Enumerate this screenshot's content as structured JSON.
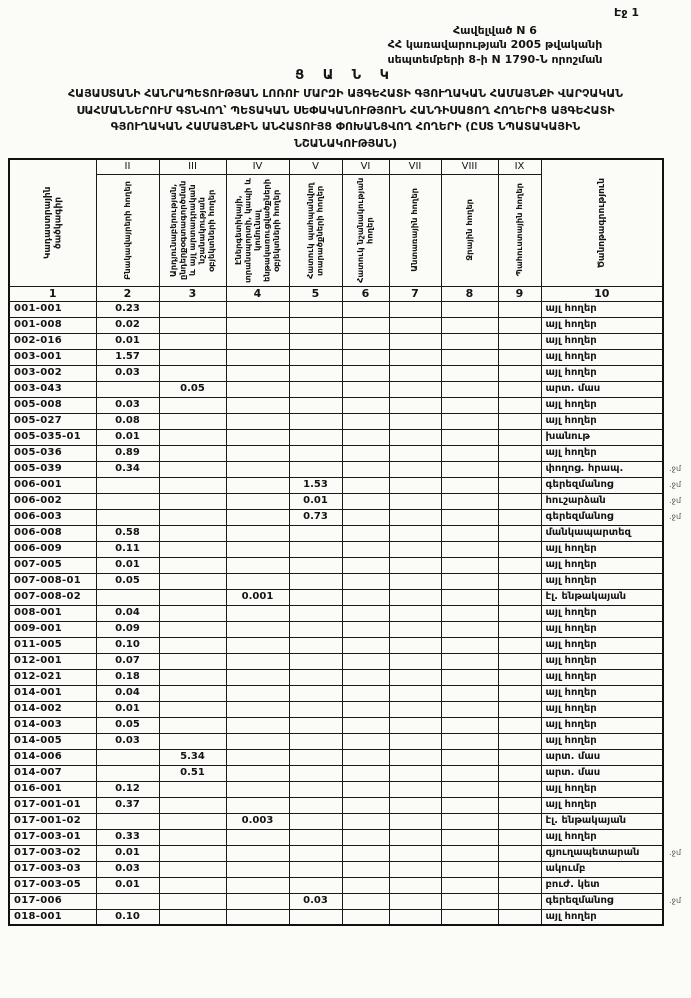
{
  "document": {
    "page_label": "Էջ 1",
    "appendix": {
      "line1": "Հավելված N 6",
      "line2": "ՀՀ կառավարության 2005 թվականի",
      "line3": "սեպտեմբերի 8-ի  N 1790-Ն որոշման"
    },
    "title": {
      "heading": "Ց Ա Ն Կ",
      "line1": "ՀԱՅԱՍՏԱՆԻ ՀԱՆՐԱՊԵՏՈՒԹՅԱՆ ԼՈՌՈՒ ՄԱՐԶԻ ԱՅԳԵՀԱՏԻ ԳՅՈՒՂԱԿԱՆ ՀԱՄԱՅՆՔԻ ՎԱՐՉԱԿԱՆ",
      "line2": "ՍԱՀՄԱՆՆԵՐՈՒՄ ԳՏՆՎՈՂ՝ ՊԵՏԱԿԱՆ ՍԵՓԱԿԱՆՈՒԹՅՈՒՆ ՀԱՆԴԻՍԱՑՈՂ ՀՈՂԵՐԻՑ ԱՅԳԵՀԱՏԻ",
      "line3": "ԳՅՈՒՂԱԿԱՆ ՀԱՄԱՅՆՔԻՆ ԱՆՀԱՏՈՒՅՑ ՓՈԽԱՆՑՎՈՂ ՀՈՂԵՐԻ  (ԸՍՏ ՆՊԱՏԱԿԱՅԻՆ",
      "line4": "ՆՇԱՆԱԿՈՒԹՅԱՆ)"
    }
  },
  "table": {
    "romans": [
      "II",
      "III",
      "IV",
      "V",
      "VI",
      "VII",
      "VIII",
      "IX"
    ],
    "headers": {
      "col1": "Կադաստրային ծածկագիր",
      "col2": "Բնակավայրերի հողեր",
      "col3": "Արդյունաբերության, ընդերքօգտագործման և այլ արտադրական նշանակության օբյեկտների հողեր",
      "col4": "Էներգետիկայի, տրանսպորտի, կապի և կոմունալ ենթակառուցվածքների օբյեկտների հողեր",
      "col5": "Հատուկ պահպանվող տարածքների հողեր",
      "col6": "Հատուկ նշանակության հողեր",
      "col7": "Անտառային հողեր",
      "col8": "Ջրային հողեր",
      "col9": "Պահուստային հողեր",
      "col10": "Ծանոթագրություն"
    },
    "column_numbers": [
      "1",
      "2",
      "3",
      "4",
      "5",
      "6",
      "7",
      "8",
      "9",
      "10"
    ],
    "row_format": [
      "code",
      "col2",
      "col3",
      "col4",
      "col5",
      "col6",
      "col7",
      "col8",
      "col9",
      "note",
      "margin_mark"
    ],
    "rows": [
      [
        "001-001",
        "0.23",
        "",
        "",
        "",
        "",
        "",
        "",
        "",
        "այլ հողեր",
        ""
      ],
      [
        "001-008",
        "0.02",
        "",
        "",
        "",
        "",
        "",
        "",
        "",
        "այլ հողեր",
        ""
      ],
      [
        "002-016",
        "0.01",
        "",
        "",
        "",
        "",
        "",
        "",
        "",
        "այլ հողեր",
        ""
      ],
      [
        "003-001",
        "1.57",
        "",
        "",
        "",
        "",
        "",
        "",
        "",
        "այլ հողեր",
        ""
      ],
      [
        "003-002",
        "0.03",
        "",
        "",
        "",
        "",
        "",
        "",
        "",
        "այլ հողեր",
        ""
      ],
      [
        "003-043",
        "",
        "0.05",
        "",
        "",
        "",
        "",
        "",
        "",
        "արտ. մաս",
        ""
      ],
      [
        "005-008",
        "0.03",
        "",
        "",
        "",
        "",
        "",
        "",
        "",
        "այլ հողեր",
        ""
      ],
      [
        "005-027",
        "0.08",
        "",
        "",
        "",
        "",
        "",
        "",
        "",
        "այլ հողեր",
        ""
      ],
      [
        "005-035-01",
        "0.01",
        "",
        "",
        "",
        "",
        "",
        "",
        "",
        "խանութ",
        ""
      ],
      [
        "005-036",
        "0.89",
        "",
        "",
        "",
        "",
        "",
        "",
        "",
        "այլ հողեր",
        ""
      ],
      [
        "005-039",
        "0.34",
        "",
        "",
        "",
        "",
        "",
        "",
        "",
        "փողոց. հրապ.",
        ".ջմ"
      ],
      [
        "006-001",
        "",
        "",
        "",
        "1.53",
        "",
        "",
        "",
        "",
        "գերեզմանոց",
        ".ջմ"
      ],
      [
        "006-002",
        "",
        "",
        "",
        "0.01",
        "",
        "",
        "",
        "",
        "հուշարձան",
        ".ջմ"
      ],
      [
        "006-003",
        "",
        "",
        "",
        "0.73",
        "",
        "",
        "",
        "",
        "գերեզմանոց",
        ".ջմ"
      ],
      [
        "006-008",
        "0.58",
        "",
        "",
        "",
        "",
        "",
        "",
        "",
        "մանկապարտեզ",
        ""
      ],
      [
        "006-009",
        "0.11",
        "",
        "",
        "",
        "",
        "",
        "",
        "",
        "այլ հողեր",
        ""
      ],
      [
        "007-005",
        "0.01",
        "",
        "",
        "",
        "",
        "",
        "",
        "",
        "այլ հողեր",
        ""
      ],
      [
        "007-008-01",
        "0.05",
        "",
        "",
        "",
        "",
        "",
        "",
        "",
        "այլ հողեր",
        ""
      ],
      [
        "007-008-02",
        "",
        "",
        "0.001",
        "",
        "",
        "",
        "",
        "",
        "էլ. ենթակայան",
        ""
      ],
      [
        "008-001",
        "0.04",
        "",
        "",
        "",
        "",
        "",
        "",
        "",
        "այլ հողեր",
        ""
      ],
      [
        "009-001",
        "0.09",
        "",
        "",
        "",
        "",
        "",
        "",
        "",
        "այլ հողեր",
        ""
      ],
      [
        "011-005",
        "0.10",
        "",
        "",
        "",
        "",
        "",
        "",
        "",
        "այլ հողեր",
        ""
      ],
      [
        "012-001",
        "0.07",
        "",
        "",
        "",
        "",
        "",
        "",
        "",
        "այլ հողեր",
        ""
      ],
      [
        "012-021",
        "0.18",
        "",
        "",
        "",
        "",
        "",
        "",
        "",
        "այլ հողեր",
        ""
      ],
      [
        "014-001",
        "0.04",
        "",
        "",
        "",
        "",
        "",
        "",
        "",
        "այլ հողեր",
        ""
      ],
      [
        "014-002",
        "0.01",
        "",
        "",
        "",
        "",
        "",
        "",
        "",
        "այլ հողեր",
        ""
      ],
      [
        "014-003",
        "0.05",
        "",
        "",
        "",
        "",
        "",
        "",
        "",
        "այլ հողեր",
        ""
      ],
      [
        "014-005",
        "0.03",
        "",
        "",
        "",
        "",
        "",
        "",
        "",
        "այլ հողեր",
        ""
      ],
      [
        "014-006",
        "",
        "5.34",
        "",
        "",
        "",
        "",
        "",
        "",
        "արտ. մաս",
        ""
      ],
      [
        "014-007",
        "",
        "0.51",
        "",
        "",
        "",
        "",
        "",
        "",
        "արտ. մաս",
        ""
      ],
      [
        "016-001",
        "0.12",
        "",
        "",
        "",
        "",
        "",
        "",
        "",
        "այլ հողեր",
        ""
      ],
      [
        "017-001-01",
        "0.37",
        "",
        "",
        "",
        "",
        "",
        "",
        "",
        "այլ հողեր",
        ""
      ],
      [
        "017-001-02",
        "",
        "",
        "0.003",
        "",
        "",
        "",
        "",
        "",
        "էլ. ենթակայան",
        ""
      ],
      [
        "017-003-01",
        "0.33",
        "",
        "",
        "",
        "",
        "",
        "",
        "",
        "այլ հողեր",
        ""
      ],
      [
        "017-003-02",
        "0.01",
        "",
        "",
        "",
        "",
        "",
        "",
        "",
        "գյուղապետարան",
        ".ջմ"
      ],
      [
        "017-003-03",
        "0.03",
        "",
        "",
        "",
        "",
        "",
        "",
        "",
        "ակումբ",
        ""
      ],
      [
        "017-003-05",
        "0.01",
        "",
        "",
        "",
        "",
        "",
        "",
        "",
        "բուժ. կետ",
        ""
      ],
      [
        "017-006",
        "",
        "",
        "",
        "0.03",
        "",
        "",
        "",
        "",
        "գերեզմանոց",
        ".ջմ"
      ],
      [
        "018-001",
        "0.10",
        "",
        "",
        "",
        "",
        "",
        "",
        "",
        "այլ հողեր",
        ""
      ]
    ]
  }
}
